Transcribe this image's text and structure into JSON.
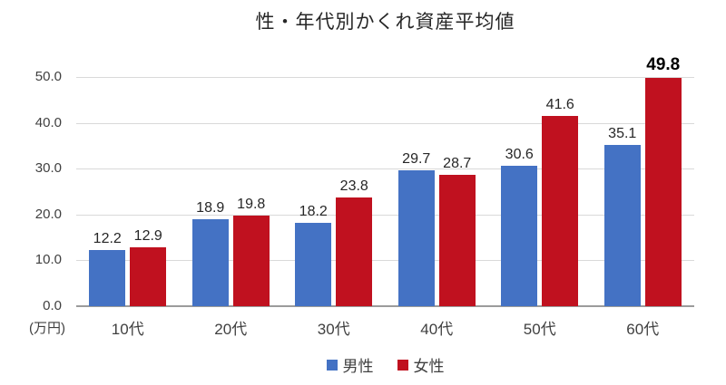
{
  "chart_data": {
    "type": "bar",
    "title": "性・年代別かくれ資産平均値",
    "categories": [
      "10代",
      "20代",
      "30代",
      "40代",
      "50代",
      "60代"
    ],
    "series": [
      {
        "name": "男性",
        "color": "#4472C4",
        "values": [
          12.2,
          18.9,
          18.2,
          29.7,
          30.6,
          35.1
        ]
      },
      {
        "name": "女性",
        "color": "#C0111F",
        "values": [
          12.9,
          19.8,
          23.8,
          28.7,
          41.6,
          49.8
        ]
      }
    ],
    "ylim": [
      0,
      50
    ],
    "yticks": [
      "0.0",
      "10.0",
      "20.0",
      "30.0",
      "40.0",
      "50.0"
    ],
    "ytick_values": [
      0,
      10,
      20,
      30,
      40,
      50
    ],
    "ylabel_unit": "(万円)",
    "grid": true,
    "data_labels": true,
    "legend_position": "bottom",
    "emphasized_label": {
      "series_index": 1,
      "category_index": 5
    }
  }
}
